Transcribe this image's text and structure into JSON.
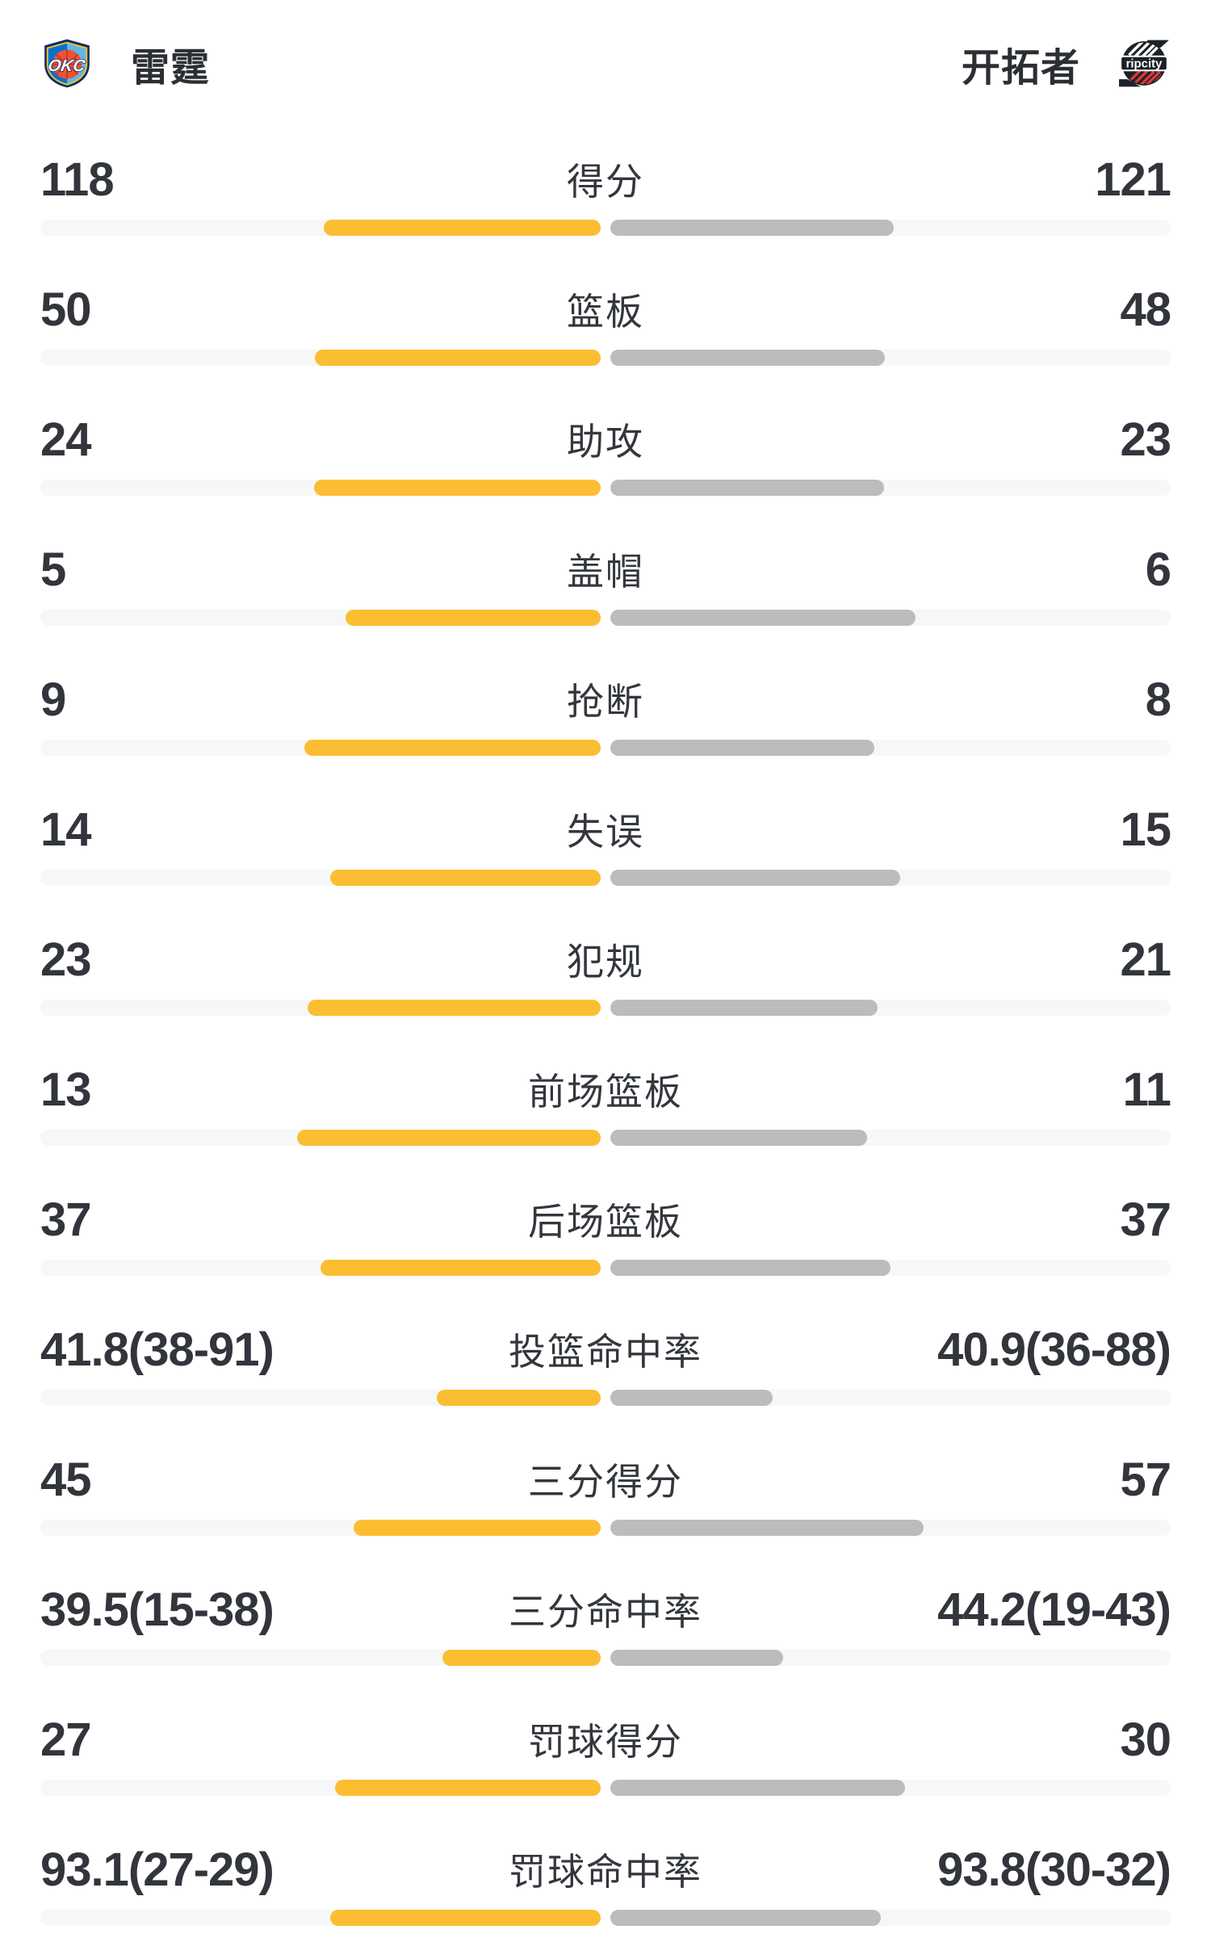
{
  "header": {
    "home_team": {
      "name": "雷霆",
      "logo": "okc-thunder-shield",
      "abbr": "OKC"
    },
    "away_team": {
      "name": "开拓者",
      "logo": "blazers-ripcity-badge",
      "logo_text": "ripcity"
    }
  },
  "colors": {
    "home_bar": "#fbbe33",
    "away_bar": "#bcbcbc",
    "bar_track": "#f6f7f8",
    "text": "#32353b"
  },
  "chart_data": {
    "type": "bar",
    "legend_note": "paired comparison bars, home fill anchored to center-left, away fill anchored to center-right, fill = % of half-track width",
    "categories": [
      "得分",
      "篮板",
      "助攻",
      "盖帽",
      "抢断",
      "失误",
      "犯规",
      "前场篮板",
      "后场篮板",
      "投篮命中率",
      "三分得分",
      "三分命中率",
      "罚球得分",
      "罚球命中率"
    ],
    "series": [
      {
        "name": "雷霆",
        "values": [
          118,
          50,
          24,
          5,
          9,
          14,
          23,
          13,
          37,
          41.8,
          45,
          39.5,
          27,
          93.1
        ]
      },
      {
        "name": "开拓者",
        "values": [
          121,
          48,
          23,
          6,
          8,
          15,
          21,
          11,
          37,
          40.9,
          57,
          44.2,
          30,
          93.8
        ]
      }
    ]
  },
  "stats": [
    {
      "label": "得分",
      "home": "118",
      "away": "121",
      "home_fill": 49.4,
      "away_fill": 50.6
    },
    {
      "label": "篮板",
      "home": "50",
      "away": "48",
      "home_fill": 51.0,
      "away_fill": 49.0
    },
    {
      "label": "助攻",
      "home": "24",
      "away": "23",
      "home_fill": 51.1,
      "away_fill": 48.9
    },
    {
      "label": "盖帽",
      "home": "5",
      "away": "6",
      "home_fill": 45.5,
      "away_fill": 54.5
    },
    {
      "label": "抢断",
      "home": "9",
      "away": "8",
      "home_fill": 52.9,
      "away_fill": 47.1
    },
    {
      "label": "失误",
      "home": "14",
      "away": "15",
      "home_fill": 48.3,
      "away_fill": 51.7
    },
    {
      "label": "犯规",
      "home": "23",
      "away": "21",
      "home_fill": 52.3,
      "away_fill": 47.7
    },
    {
      "label": "前场篮板",
      "home": "13",
      "away": "11",
      "home_fill": 54.2,
      "away_fill": 45.8
    },
    {
      "label": "后场篮板",
      "home": "37",
      "away": "37",
      "home_fill": 50.0,
      "away_fill": 50.0
    },
    {
      "label": "投篮命中率",
      "home": "41.8(38-91)",
      "away": "40.9(36-88)",
      "home_fill": 29.3,
      "away_fill": 29.0
    },
    {
      "label": "三分得分",
      "home": "45",
      "away": "57",
      "home_fill": 44.1,
      "away_fill": 55.9
    },
    {
      "label": "三分命中率",
      "home": "39.5(15-38)",
      "away": "44.2(19-43)",
      "home_fill": 28.3,
      "away_fill": 30.8
    },
    {
      "label": "罚球得分",
      "home": "27",
      "away": "30",
      "home_fill": 47.4,
      "away_fill": 52.6
    },
    {
      "label": "罚球命中率",
      "home": "93.1(27-29)",
      "away": "93.8(30-32)",
      "home_fill": 48.3,
      "away_fill": 48.3
    }
  ]
}
